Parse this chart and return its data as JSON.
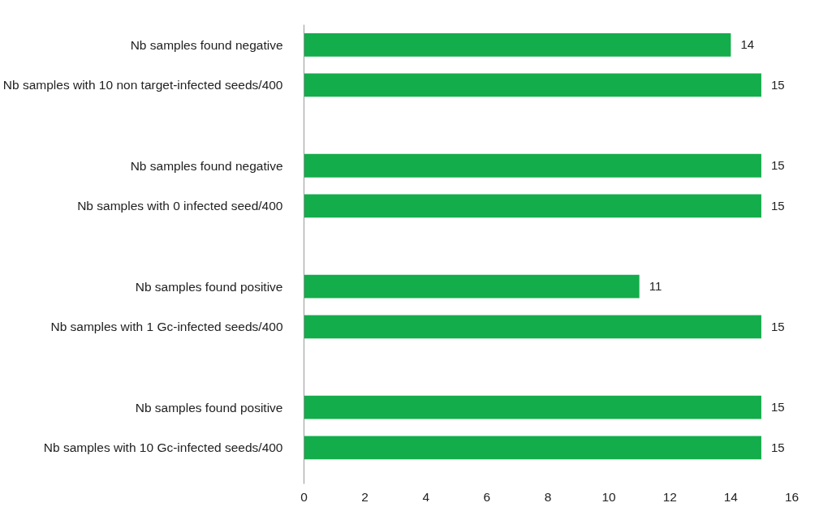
{
  "chart_data": {
    "type": "bar",
    "orientation": "horizontal",
    "categories": [
      "Nb samples found negative",
      "Nb samples with 10 non target-infected seeds/400",
      null,
      "Nb samples found negative",
      "Nb samples with 0 infected seed/400",
      null,
      "Nb samples found positive",
      "Nb samples with 1 Gc-infected seeds/400",
      null,
      "Nb samples found positive",
      "Nb samples with 10 Gc-infected seeds/400"
    ],
    "values": [
      14,
      15,
      null,
      15,
      15,
      null,
      11,
      15,
      null,
      15,
      15
    ],
    "color": "#13ad4b",
    "xlim": [
      0,
      16
    ],
    "xticks": [
      0,
      2,
      4,
      6,
      8,
      10,
      12,
      14,
      16
    ],
    "grid": false,
    "data_labels": true
  }
}
